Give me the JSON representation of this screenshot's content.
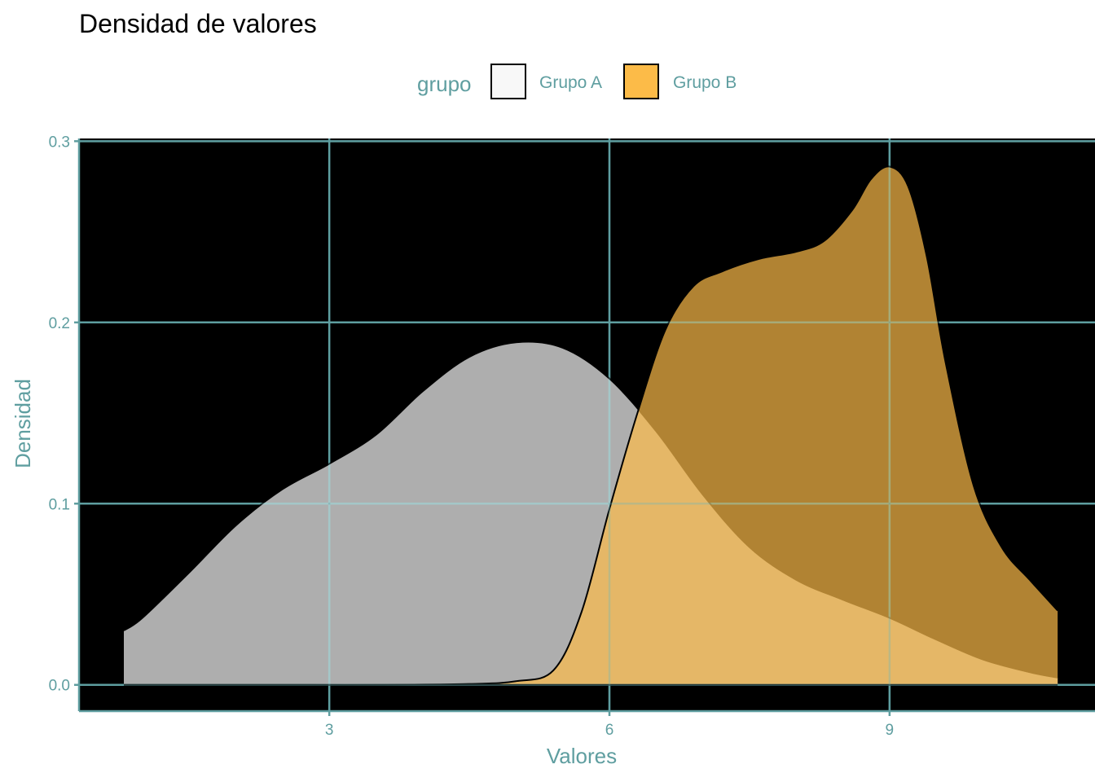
{
  "chart_data": {
    "type": "area",
    "title": "Densidad de valores",
    "xlabel": "Valores",
    "ylabel": "Densidad",
    "xlim": [
      0.32,
      11.2
    ],
    "ylim": [
      -0.0145,
      0.3015
    ],
    "x_ticks": [
      3,
      6,
      9
    ],
    "x_tick_labels": [
      "3",
      "6",
      "9"
    ],
    "y_ticks": [
      0.0,
      0.1,
      0.2,
      0.3
    ],
    "y_tick_labels": [
      "0.0",
      "0.1",
      "0.2",
      "0.3"
    ],
    "grid": true,
    "panel_background": "#000000",
    "grid_color": "#5f9ea0",
    "text_color": "#5f9ea0",
    "legend": {
      "title": "grupo",
      "position": "top",
      "entries": [
        {
          "label": "Grupo A",
          "fill": "#f8f8f8"
        },
        {
          "label": "Grupo B",
          "fill": "#fcbb48"
        }
      ]
    },
    "series": [
      {
        "name": "Grupo A",
        "fill": "#f8f8f8",
        "opacity": 0.7,
        "x": [
          0.8,
          1.0,
          1.5,
          2.0,
          2.5,
          3.0,
          3.5,
          4.0,
          4.5,
          5.0,
          5.5,
          6.0,
          6.5,
          7.0,
          7.5,
          8.0,
          8.5,
          9.0,
          9.5,
          10.0,
          10.5,
          10.8
        ],
        "y": [
          0.03,
          0.037,
          0.062,
          0.088,
          0.108,
          0.122,
          0.138,
          0.162,
          0.181,
          0.189,
          0.186,
          0.169,
          0.14,
          0.105,
          0.076,
          0.058,
          0.047,
          0.037,
          0.025,
          0.014,
          0.007,
          0.004
        ]
      },
      {
        "name": "Grupo B",
        "fill": "#fcbb48",
        "opacity": 0.7,
        "x": [
          0.8,
          1.5,
          2.5,
          3.5,
          4.5,
          5.0,
          5.4,
          5.7,
          6.0,
          6.3,
          6.6,
          6.9,
          7.2,
          7.6,
          8.0,
          8.3,
          8.6,
          8.8,
          9.0,
          9.2,
          9.4,
          9.6,
          9.9,
          10.2,
          10.5,
          10.8
        ],
        "y": [
          0.0,
          0.0,
          0.0,
          0.0,
          0.0005,
          0.002,
          0.008,
          0.04,
          0.097,
          0.15,
          0.196,
          0.22,
          0.228,
          0.235,
          0.239,
          0.245,
          0.262,
          0.279,
          0.286,
          0.275,
          0.236,
          0.178,
          0.11,
          0.076,
          0.058,
          0.041
        ]
      }
    ]
  }
}
